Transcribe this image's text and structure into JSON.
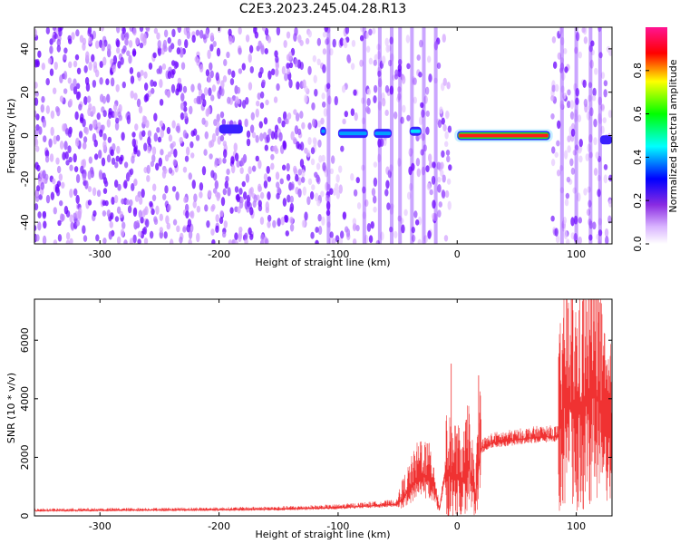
{
  "title": "C2E3.2023.245.04.28.R13",
  "chart_data": [
    {
      "type": "heatmap",
      "xlabel": "Height of straight line (km)",
      "ylabel": "Frequency (Hz)",
      "xlim": [
        -355,
        130
      ],
      "ylim": [
        -50,
        50
      ],
      "xticks": [
        -300,
        -200,
        -100,
        0,
        100
      ],
      "yticks": [
        -40,
        -20,
        0,
        20,
        40
      ],
      "colorbar": {
        "label": "Normalized spectral amplitude",
        "range": [
          0,
          1
        ],
        "ticks": [
          0.0,
          0.2,
          0.4,
          0.6,
          0.8
        ],
        "colors": [
          "#ffffff",
          "#8a2be2",
          "#0000ff",
          "#00ffff",
          "#00ff00",
          "#ffff00",
          "#ff0000",
          "#ff1493"
        ]
      },
      "features": [
        {
          "x_range": [
            0,
            78
          ],
          "y": 0,
          "amplitude": 0.9
        },
        {
          "x_range": [
            -200,
            -180
          ],
          "y": 3,
          "amplitude": 0.35
        },
        {
          "x_range": [
            -115,
            -110
          ],
          "y": 2,
          "amplitude": 0.45
        },
        {
          "x_range": [
            -100,
            -75
          ],
          "y": 1,
          "amplitude": 0.5
        },
        {
          "x_range": [
            -70,
            -55
          ],
          "y": 1,
          "amplitude": 0.5
        },
        {
          "x_range": [
            -40,
            -30
          ],
          "y": 2,
          "amplitude": 0.55
        },
        {
          "x_range": [
            120,
            130
          ],
          "y": -2,
          "amplitude": 0.4
        }
      ]
    },
    {
      "type": "line",
      "xlabel": "Height of straight line (km)",
      "ylabel": "SNR (10 * v/v)",
      "xlim": [
        -355,
        130
      ],
      "ylim": [
        0,
        7400
      ],
      "xticks": [
        -300,
        -200,
        -100,
        0,
        100
      ],
      "yticks": [
        0,
        2000,
        4000,
        6000
      ],
      "color": "#f03232",
      "x": [
        -355,
        -300,
        -250,
        -200,
        -150,
        -100,
        -70,
        -50,
        -40,
        -30,
        -20,
        -15,
        -10,
        0,
        5,
        10,
        15,
        20,
        30,
        50,
        70,
        85,
        90,
        100,
        110,
        115,
        120,
        125,
        130
      ],
      "y": [
        180,
        190,
        200,
        210,
        230,
        280,
        350,
        400,
        900,
        1400,
        1100,
        200,
        1500,
        1400,
        1200,
        1800,
        600,
        2300,
        2500,
        2600,
        2700,
        2700,
        3800,
        3500,
        3800,
        4500,
        3600,
        2700,
        2700
      ],
      "peaks": [
        {
          "x": -5,
          "y": 5200
        },
        {
          "x": 18,
          "y": 4800
        },
        {
          "x": 95,
          "y": 5500
        },
        {
          "x": 118,
          "y": 7400
        }
      ]
    }
  ]
}
